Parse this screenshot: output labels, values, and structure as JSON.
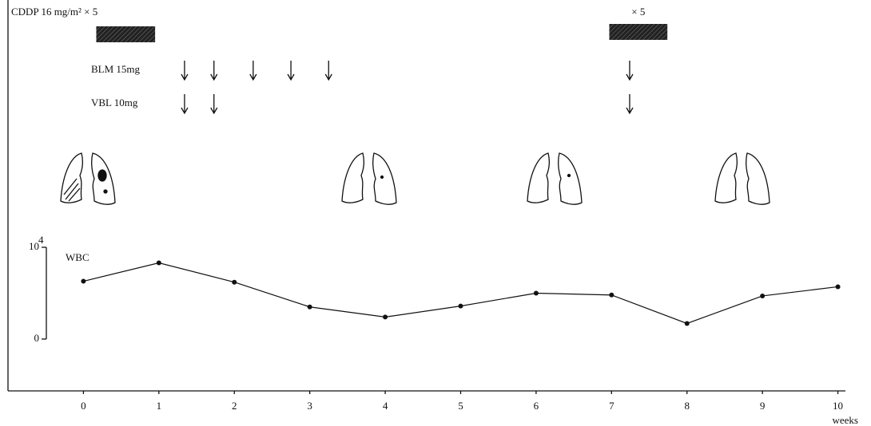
{
  "chart_data": {
    "type": "line",
    "x": [
      0,
      1,
      2,
      3,
      4,
      5,
      6,
      7,
      8,
      9,
      10
    ],
    "xlim": [
      -1,
      10.1
    ],
    "xticks": [
      0,
      1,
      2,
      3,
      4,
      5,
      6,
      7,
      8,
      9,
      10
    ],
    "xlabel": "weeks",
    "series": [
      {
        "name": "WBC",
        "color": "#111111",
        "values": [
          6.3,
          8.3,
          6.2,
          3.5,
          2.4,
          3.6,
          5.0,
          4.8,
          1.7,
          4.7,
          5.7
        ]
      }
    ],
    "ylim": [
      0,
      10
    ],
    "yticks": [
      0,
      10
    ],
    "ytick_superscript": "4",
    "treatments": [
      {
        "label": "CDDP 16 mg/m² × 5",
        "start": 0.17,
        "end": 0.95
      },
      {
        "label": "× 5",
        "start": 6.97,
        "end": 7.74
      }
    ],
    "doses": [
      {
        "label": "BLM 15mg",
        "times": [
          1.34,
          1.73,
          2.25,
          2.75,
          3.25,
          7.24
        ]
      },
      {
        "label": "VBL 10mg",
        "times": [
          1.34,
          1.73,
          7.24
        ]
      }
    ]
  }
}
